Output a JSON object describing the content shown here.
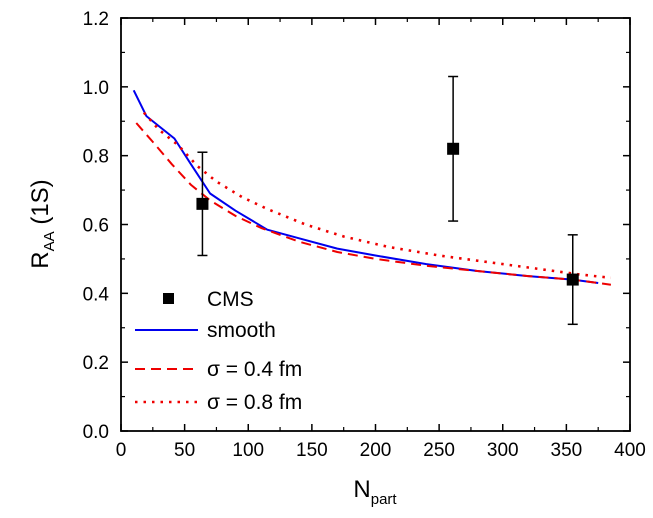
{
  "chart_data": {
    "type": "scatter",
    "xlabel": {
      "main": "N",
      "sub": "part"
    },
    "ylabel": {
      "main": "R",
      "sub": "AA",
      "suffix": " (1S)"
    },
    "xlim": [
      0,
      400
    ],
    "ylim": [
      0.0,
      1.2
    ],
    "xticks": [
      "0",
      "50",
      "100",
      "150",
      "200",
      "250",
      "300",
      "350",
      "400"
    ],
    "yticks": [
      "0.0",
      "0.2",
      "0.4",
      "0.6",
      "0.8",
      "1.0",
      "1.2"
    ],
    "grid": false,
    "legend_position": "bottom-left",
    "series": [
      {
        "name": "CMS",
        "kind": "points",
        "color": "#000000",
        "points": [
          {
            "x": 64,
            "y": 0.66,
            "err_low": 0.51,
            "err_high": 0.81
          },
          {
            "x": 261,
            "y": 0.82,
            "err_low": 0.61,
            "err_high": 1.03
          },
          {
            "x": 355,
            "y": 0.44,
            "err_low": 0.31,
            "err_high": 0.57
          }
        ]
      },
      {
        "name": "smooth",
        "kind": "line",
        "style": "solid",
        "color": "#0000ee",
        "x": [
          10,
          20,
          30,
          42,
          55,
          70,
          90,
          115,
          140,
          170,
          200,
          240,
          280,
          320,
          355,
          375
        ],
        "y": [
          0.99,
          0.915,
          0.885,
          0.85,
          0.775,
          0.69,
          0.64,
          0.585,
          0.56,
          0.53,
          0.51,
          0.485,
          0.465,
          0.45,
          0.44,
          0.43
        ]
      },
      {
        "name": "σ = 0.4 fm",
        "kind": "line",
        "style": "dashed",
        "color": "#ee0000",
        "x": [
          12,
          25,
          40,
          55,
          70,
          90,
          110,
          140,
          170,
          200,
          240,
          280,
          320,
          355,
          385
        ],
        "y": [
          0.895,
          0.84,
          0.775,
          0.715,
          0.67,
          0.625,
          0.59,
          0.55,
          0.52,
          0.5,
          0.48,
          0.465,
          0.45,
          0.44,
          0.425
        ]
      },
      {
        "name": "σ = 0.8 fm",
        "kind": "line",
        "style": "dotted",
        "color": "#ee0000",
        "x": [
          18,
          30,
          45,
          60,
          75,
          95,
          115,
          145,
          175,
          210,
          250,
          290,
          330,
          360,
          385
        ],
        "y": [
          0.925,
          0.875,
          0.83,
          0.77,
          0.725,
          0.68,
          0.645,
          0.6,
          0.565,
          0.535,
          0.51,
          0.49,
          0.47,
          0.455,
          0.445
        ]
      }
    ]
  }
}
